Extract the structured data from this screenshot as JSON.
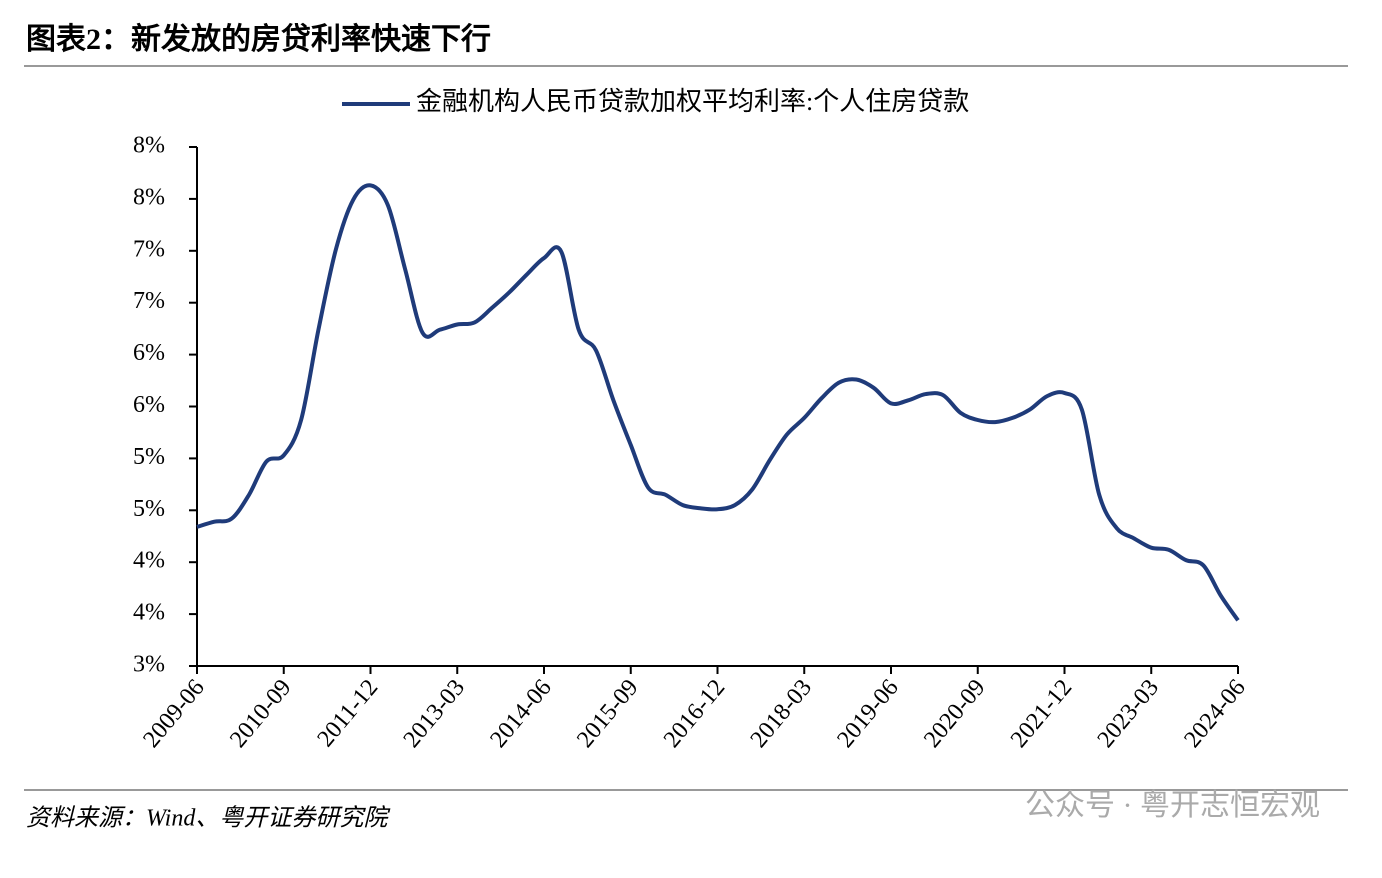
{
  "chart_data": {
    "type": "line",
    "title": "图表2：新发放的房贷利率快速下行",
    "source": "资料来源：Wind、粤开证券研究院",
    "watermark": "公众号 · 粤开志恒宏观",
    "legend": "top",
    "categories": [
      "2009-06",
      null,
      null,
      null,
      null,
      "2010-09",
      null,
      null,
      null,
      null,
      "2011-12",
      null,
      null,
      null,
      null,
      "2013-03",
      null,
      null,
      null,
      null,
      "2014-06",
      null,
      null,
      null,
      null,
      "2015-09",
      null,
      null,
      null,
      null,
      "2016-12",
      null,
      null,
      null,
      null,
      "2018-03",
      null,
      null,
      null,
      null,
      "2019-06",
      null,
      null,
      null,
      null,
      "2020-09",
      null,
      null,
      null,
      null,
      "2021-12",
      null,
      null,
      null,
      null,
      "2023-03",
      null,
      null,
      null,
      null,
      "2024-06"
    ],
    "series": [
      {
        "name": "金融机构人民币贷款加权平均利率:个人住房贷款",
        "color": "#1f3b7a",
        "values": [
          4.34,
          4.39,
          4.42,
          4.65,
          4.97,
          5.03,
          5.37,
          6.24,
          7.01,
          7.49,
          7.63,
          7.44,
          6.82,
          6.21,
          6.24,
          6.29,
          6.31,
          6.45,
          6.6,
          6.77,
          6.93,
          6.99,
          6.24,
          6.04,
          5.56,
          5.13,
          4.72,
          4.65,
          4.55,
          4.52,
          4.51,
          4.55,
          4.7,
          4.98,
          5.23,
          5.39,
          5.58,
          5.73,
          5.76,
          5.68,
          5.53,
          5.56,
          5.62,
          5.61,
          5.44,
          5.37,
          5.35,
          5.39,
          5.47,
          5.6,
          5.63,
          5.47,
          4.65,
          4.33,
          4.23,
          4.14,
          4.12,
          4.02,
          3.97,
          3.68,
          3.44
        ]
      }
    ],
    "ylim": [
      3,
      8
    ],
    "yticks": [
      {
        "value": 3,
        "label": "3%"
      },
      {
        "value": 3.5,
        "label": "4%"
      },
      {
        "value": 4,
        "label": "4%"
      },
      {
        "value": 4.5,
        "label": "5%"
      },
      {
        "value": 5,
        "label": "5%"
      },
      {
        "value": 5.5,
        "label": "6%"
      },
      {
        "value": 6,
        "label": "6%"
      },
      {
        "value": 6.5,
        "label": "7%"
      },
      {
        "value": 7,
        "label": "7%"
      },
      {
        "value": 7.5,
        "label": "8%"
      },
      {
        "value": 8,
        "label": "8%"
      }
    ],
    "grid": false
  }
}
